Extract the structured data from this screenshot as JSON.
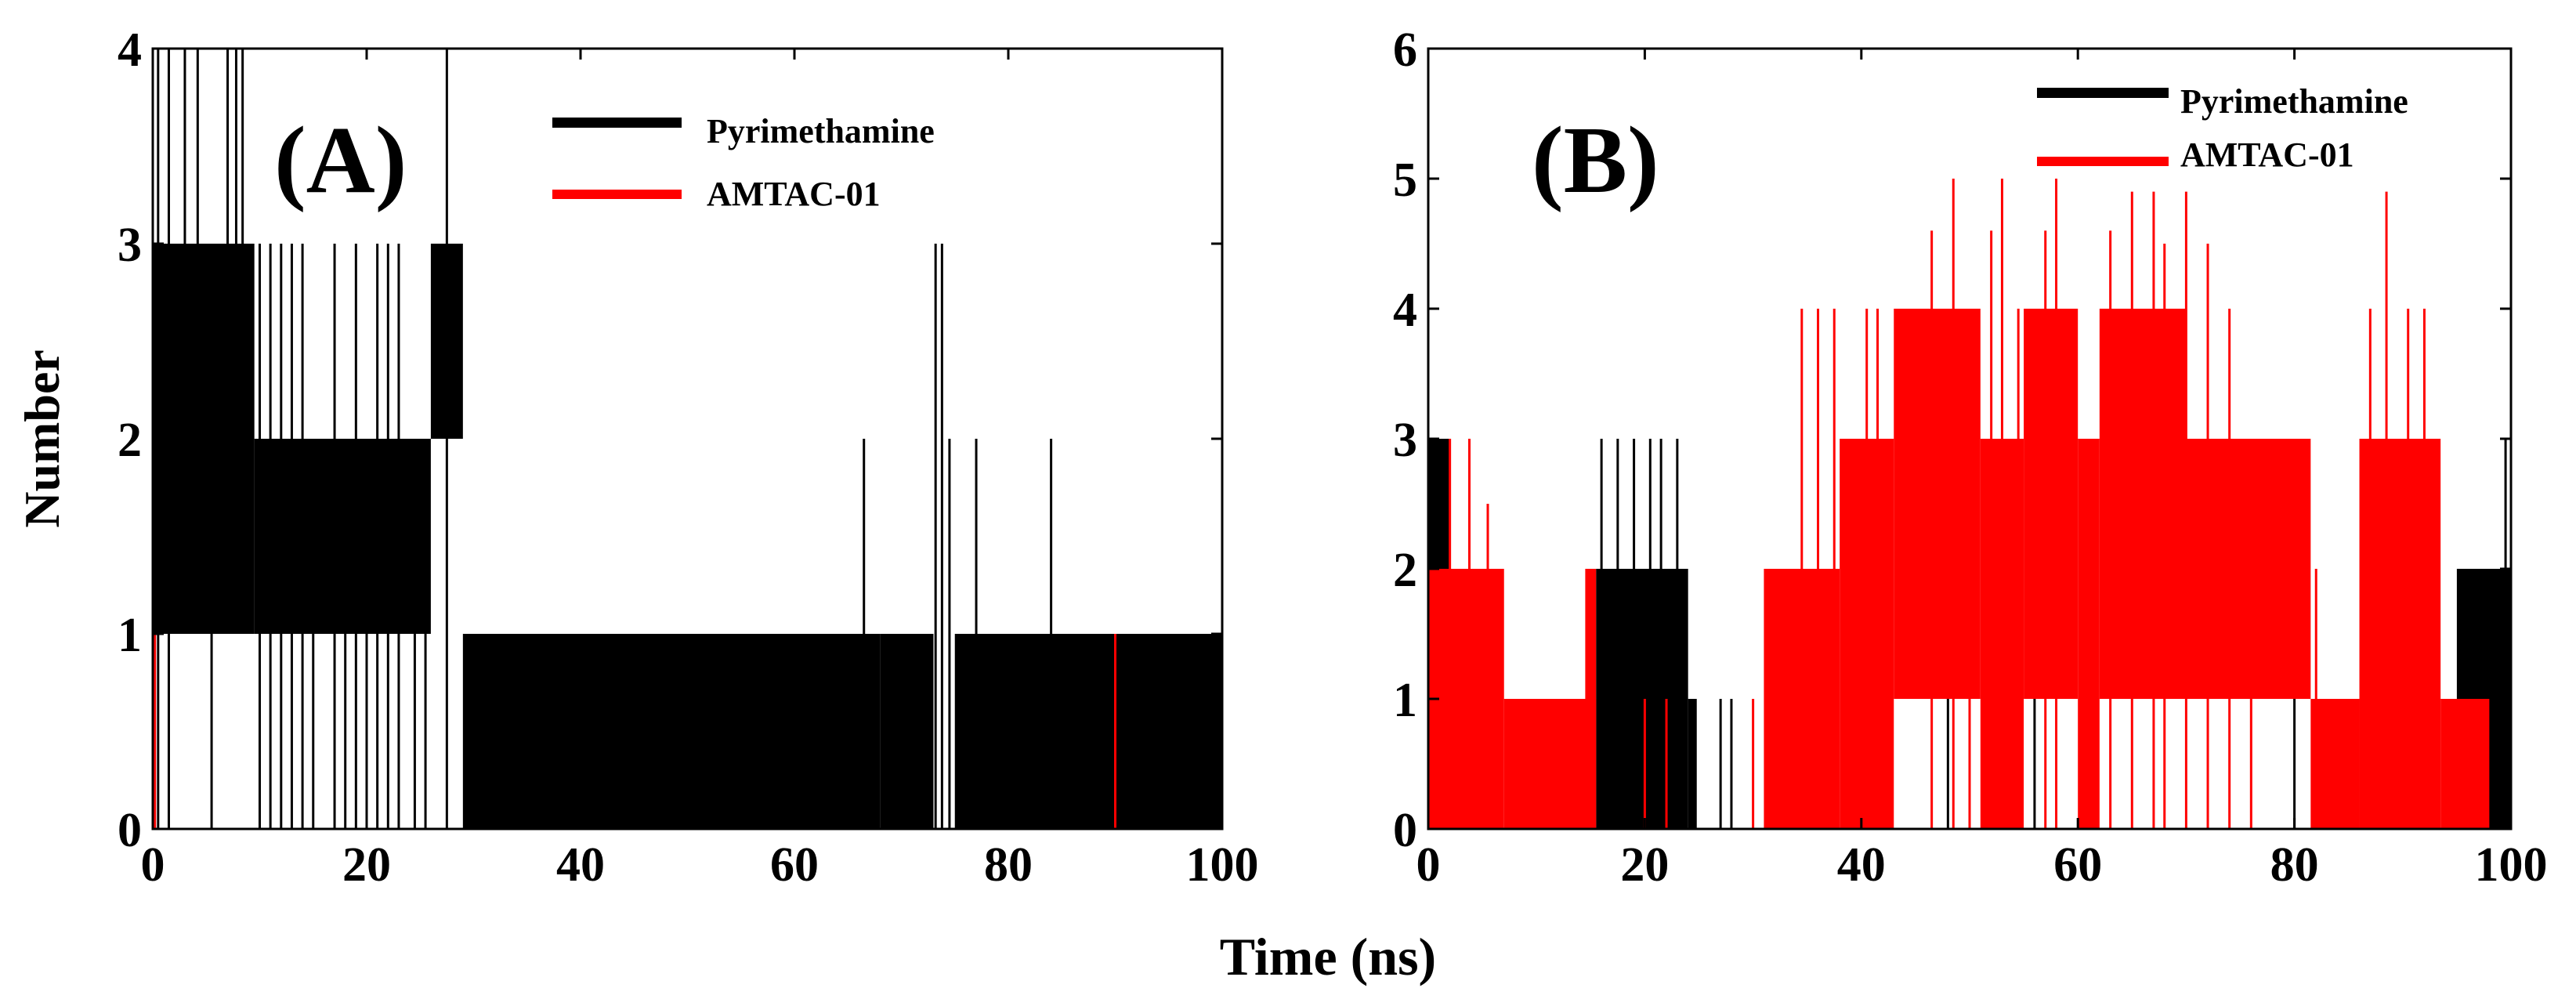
{
  "figure": {
    "ylabel": "Number",
    "xlabel": "Time (ns)"
  },
  "colors": {
    "pyrimethamine": "#000000",
    "amtac": "#ff0000"
  },
  "chart_data": [
    {
      "type": "line",
      "panel_label": "(A)",
      "xlabel": "Time (ns)",
      "ylabel": "Number",
      "xlim": [
        0,
        100
      ],
      "ylim": [
        0,
        4
      ],
      "x_ticks": [
        0,
        20,
        40,
        60,
        80,
        100
      ],
      "y_ticks": [
        0,
        1,
        2,
        3,
        4
      ],
      "legend_position": "top-center",
      "series": [
        {
          "name": "Pyrimethamine",
          "color": "#000000",
          "segments": [
            {
              "x": [
                0,
                9.5
              ],
              "low": 1,
              "high": 3
            },
            {
              "x": [
                9.5,
                26
              ],
              "low": 1,
              "high": 2
            },
            {
              "x": [
                26,
                29
              ],
              "low": 2,
              "high": 3
            },
            {
              "x": [
                29,
                68
              ],
              "low": 0,
              "high": 1
            },
            {
              "x": [
                68,
                73
              ],
              "low": 0,
              "high": 1
            },
            {
              "x": [
                75,
                100
              ],
              "low": 0,
              "high": 1
            }
          ],
          "spikes": [
            [
              0.5,
              0,
              4
            ],
            [
              1.5,
              0,
              4
            ],
            [
              3,
              1,
              4
            ],
            [
              4.2,
              1,
              4
            ],
            [
              5.5,
              0,
              3
            ],
            [
              7,
              1,
              4
            ],
            [
              7.8,
              1,
              4
            ],
            [
              8.4,
              1,
              4
            ],
            [
              10,
              0,
              3
            ],
            [
              11,
              0,
              3
            ],
            [
              12,
              0,
              3
            ],
            [
              13,
              0,
              3
            ],
            [
              14,
              0,
              3
            ],
            [
              15,
              0,
              2
            ],
            [
              17,
              0,
              3
            ],
            [
              18,
              0,
              2
            ],
            [
              19,
              0,
              3
            ],
            [
              20,
              0,
              2
            ],
            [
              21,
              0,
              3
            ],
            [
              22,
              0,
              3
            ],
            [
              23,
              0,
              3
            ],
            [
              24.5,
              0,
              2
            ],
            [
              25.5,
              0,
              2
            ],
            [
              27.5,
              0,
              4
            ],
            [
              66.5,
              0,
              2
            ],
            [
              73.2,
              0,
              3
            ],
            [
              73.8,
              0,
              3
            ],
            [
              74.5,
              0,
              2
            ],
            [
              77,
              0,
              2
            ],
            [
              84,
              0,
              2
            ]
          ]
        },
        {
          "name": "AMTAC-01",
          "color": "#ff0000",
          "segments": [],
          "spikes": [
            [
              0.2,
              0,
              1
            ],
            [
              90,
              0,
              1
            ]
          ]
        }
      ]
    },
    {
      "type": "line",
      "panel_label": "(B)",
      "xlabel": "Time (ns)",
      "ylabel": "Number",
      "xlim": [
        0,
        100
      ],
      "ylim": [
        0,
        6
      ],
      "x_ticks": [
        0,
        20,
        40,
        60,
        80,
        100
      ],
      "y_ticks": [
        0,
        1,
        2,
        3,
        4,
        5,
        6
      ],
      "legend_position": "top-right",
      "series": [
        {
          "name": "Pyrimethamine",
          "color": "#000000",
          "segments": [
            {
              "x": [
                0,
                2
              ],
              "low": 0,
              "high": 3
            },
            {
              "x": [
                15.5,
                24
              ],
              "low": 0,
              "high": 2
            },
            {
              "x": [
                24,
                24.8
              ],
              "low": 0,
              "high": 1
            },
            {
              "x": [
                95,
                100
              ],
              "low": 0,
              "high": 2
            }
          ],
          "spikes": [
            [
              16,
              0,
              3
            ],
            [
              17.5,
              0,
              3
            ],
            [
              19,
              0,
              3
            ],
            [
              20.5,
              0,
              3
            ],
            [
              21.5,
              0,
              3
            ],
            [
              23,
              0,
              3
            ],
            [
              27,
              0,
              1
            ],
            [
              28,
              0,
              1
            ],
            [
              48,
              0,
              1
            ],
            [
              56,
              0,
              1
            ],
            [
              80,
              0,
              1
            ],
            [
              91.5,
              0,
              2
            ],
            [
              93,
              0,
              2
            ],
            [
              99.5,
              0,
              3
            ]
          ]
        },
        {
          "name": "AMTAC-01",
          "color": "#ff0000",
          "segments": [
            {
              "x": [
                0,
                7
              ],
              "low": 0,
              "high": 2
            },
            {
              "x": [
                7,
                15.5
              ],
              "low": 0,
              "high": 1
            },
            {
              "x": [
                14.5,
                15.5
              ],
              "low": 0,
              "high": 2
            },
            {
              "x": [
                31,
                38
              ],
              "low": 0,
              "high": 2
            },
            {
              "x": [
                38,
                43
              ],
              "low": 0,
              "high": 3
            },
            {
              "x": [
                43,
                51
              ],
              "low": 1,
              "high": 4
            },
            {
              "x": [
                51,
                55
              ],
              "low": 0,
              "high": 3
            },
            {
              "x": [
                55,
                60
              ],
              "low": 1,
              "high": 4
            },
            {
              "x": [
                60,
                62
              ],
              "low": 0,
              "high": 3
            },
            {
              "x": [
                62,
                70
              ],
              "low": 1,
              "high": 4
            },
            {
              "x": [
                70,
                81.5
              ],
              "low": 1,
              "high": 3
            },
            {
              "x": [
                81.5,
                86
              ],
              "low": 0,
              "high": 1
            },
            {
              "x": [
                86,
                93.5
              ],
              "low": 0,
              "high": 3
            },
            {
              "x": [
                93.5,
                98
              ],
              "low": 0,
              "high": 1
            }
          ],
          "spikes": [
            [
              2,
              0,
              3
            ],
            [
              3.8,
              0,
              3
            ],
            [
              5.5,
              0,
              2.5
            ],
            [
              20,
              0,
              1
            ],
            [
              22,
              0,
              1
            ],
            [
              30,
              0,
              1
            ],
            [
              34.5,
              0,
              4
            ],
            [
              36,
              0,
              4
            ],
            [
              37.5,
              0,
              4
            ],
            [
              40.5,
              0,
              4
            ],
            [
              41.5,
              0,
              4
            ],
            [
              42.5,
              0,
              3
            ],
            [
              46.5,
              0,
              4.6
            ],
            [
              48.5,
              0,
              5
            ],
            [
              50,
              0,
              4
            ],
            [
              52,
              0,
              4.6
            ],
            [
              53,
              0,
              5
            ],
            [
              54.5,
              0,
              4
            ],
            [
              57,
              0,
              4.6
            ],
            [
              58,
              0,
              5
            ],
            [
              63,
              0,
              4.6
            ],
            [
              65,
              0,
              4.9
            ],
            [
              67,
              0,
              4.9
            ],
            [
              68,
              0,
              4.5
            ],
            [
              70,
              0,
              4.9
            ],
            [
              72,
              0,
              4.5
            ],
            [
              74,
              0,
              4
            ],
            [
              76,
              0,
              3
            ],
            [
              82,
              0,
              2
            ],
            [
              87,
              0,
              4
            ],
            [
              88.5,
              0,
              4.9
            ],
            [
              90.5,
              0,
              4
            ],
            [
              92,
              0,
              4
            ],
            [
              93,
              0,
              3
            ]
          ]
        }
      ]
    }
  ]
}
